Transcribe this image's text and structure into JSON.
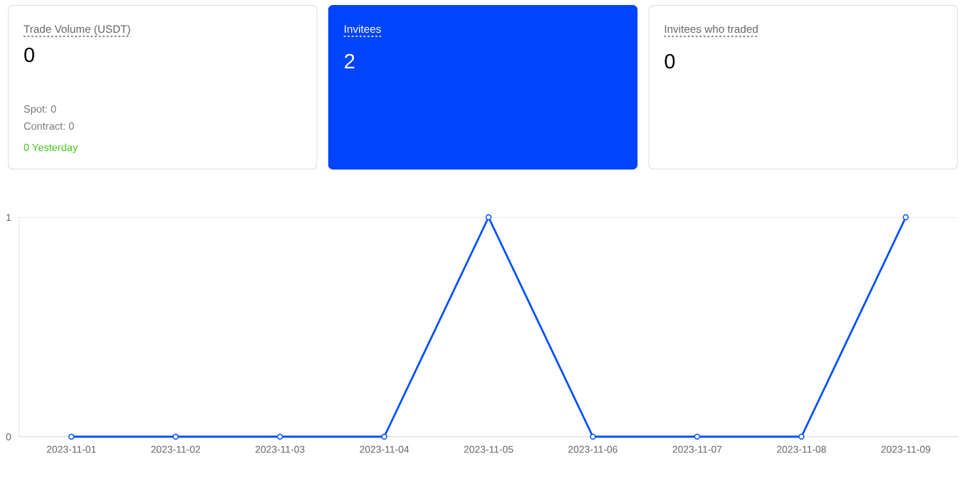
{
  "chart_data": [
    {
      "type": "other",
      "title": "Trade Volume (USDT)",
      "annotations": [
        "0",
        "Spot: 0",
        "Contract: 0",
        "0 Yesterday"
      ]
    },
    {
      "type": "other",
      "title": "Invitees",
      "annotations": [
        "2"
      ]
    },
    {
      "type": "other",
      "title": "Invitees who traded",
      "annotations": [
        "0"
      ]
    },
    {
      "type": "line",
      "categories": [
        "2023-11-01",
        "2023-11-02",
        "2023-11-03",
        "2023-11-04",
        "2023-11-05",
        "2023-11-06",
        "2023-11-07",
        "2023-11-08",
        "2023-11-09"
      ],
      "series": [
        {
          "color": "#0050ff",
          "values": [
            0,
            0,
            0,
            0,
            1,
            0,
            0,
            0,
            1
          ]
        }
      ],
      "ylim": [
        0,
        1
      ],
      "yticks": [
        0,
        1
      ],
      "grid": "y",
      "marker": "circle"
    }
  ]
}
